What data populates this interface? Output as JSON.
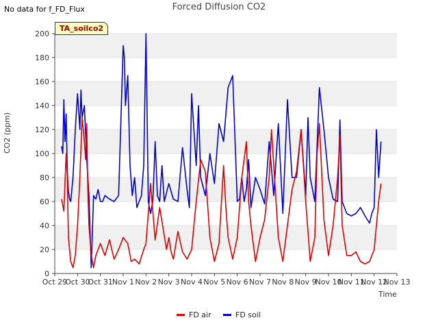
{
  "no_data_msg": "No data for f_FD_Flux",
  "tag_label": "TA_soilco2",
  "chart_data": {
    "type": "line",
    "title": "Forced Diffusion CO2",
    "xlabel": "Time",
    "ylabel": "CO2 (ppm)",
    "ylim": [
      0,
      200
    ],
    "yticks": [
      0,
      20,
      40,
      60,
      80,
      100,
      120,
      140,
      160,
      180,
      200
    ],
    "xticks": [
      "Oct 29",
      "Oct 30",
      "Oct 31",
      "Nov 1",
      "Nov 2",
      "Nov 3",
      "Nov 4",
      "Nov 5",
      "Nov 6",
      "Nov 7",
      "Nov 8",
      "Nov 9",
      "Nov 10",
      "Nov 11",
      "Nov 12",
      "Nov 13"
    ],
    "xlim_days": [
      0,
      15
    ],
    "grid": "horizontal bands",
    "legend_position": "bottom-center",
    "series": [
      {
        "name": "FD air",
        "color": "#dd0000",
        "x": [
          0.3,
          0.4,
          0.5,
          0.55,
          0.6,
          0.7,
          0.8,
          0.9,
          1.0,
          1.1,
          1.2,
          1.3,
          1.35,
          1.4,
          1.45,
          1.5,
          1.6,
          1.7,
          1.8,
          1.9,
          2.0,
          2.2,
          2.4,
          2.6,
          2.8,
          3.0,
          3.2,
          3.35,
          3.5,
          3.7,
          3.9,
          4.0,
          4.2,
          4.4,
          4.6,
          4.9,
          5.0,
          5.1,
          5.2,
          5.4,
          5.6,
          5.8,
          6.0,
          6.2,
          6.4,
          6.6,
          6.8,
          7.0,
          7.2,
          7.4,
          7.5,
          7.6,
          7.8,
          8.0,
          8.2,
          8.4,
          8.5,
          8.6,
          8.8,
          9.0,
          9.2,
          9.4,
          9.5,
          9.6,
          9.8,
          10.0,
          10.2,
          10.4,
          10.6,
          10.8,
          11.0,
          11.2,
          11.4,
          11.5,
          11.6,
          11.8,
          12.0,
          12.2,
          12.4,
          12.5,
          12.6,
          12.8,
          13.0,
          13.2,
          13.4,
          13.6,
          13.8,
          14.0,
          14.2,
          14.3
        ],
        "y": [
          62,
          52,
          100,
          80,
          30,
          10,
          5,
          15,
          40,
          80,
          130,
          110,
          95,
          125,
          70,
          40,
          15,
          5,
          15,
          20,
          25,
          15,
          28,
          12,
          20,
          30,
          25,
          10,
          12,
          8,
          20,
          25,
          75,
          28,
          55,
          20,
          30,
          18,
          12,
          35,
          18,
          12,
          20,
          60,
          95,
          85,
          30,
          10,
          25,
          90,
          55,
          30,
          12,
          30,
          80,
          110,
          60,
          40,
          10,
          30,
          45,
          80,
          120,
          90,
          30,
          10,
          40,
          70,
          85,
          120,
          60,
          10,
          30,
          100,
          125,
          45,
          15,
          40,
          80,
          115,
          40,
          15,
          15,
          18,
          10,
          8,
          10,
          20,
          60,
          75
        ]
      },
      {
        "name": "FD soil",
        "color": "#0000cc",
        "x": [
          0.3,
          0.35,
          0.4,
          0.45,
          0.5,
          0.55,
          0.6,
          0.65,
          0.7,
          0.8,
          0.9,
          1.0,
          1.1,
          1.15,
          1.2,
          1.3,
          1.4,
          1.5,
          1.6,
          1.7,
          1.8,
          1.9,
          2.0,
          2.1,
          2.2,
          2.4,
          2.6,
          2.8,
          3.0,
          3.05,
          3.1,
          3.2,
          3.3,
          3.4,
          3.5,
          3.6,
          3.7,
          3.8,
          3.9,
          4.0,
          4.1,
          4.2,
          4.3,
          4.4,
          4.5,
          4.6,
          4.7,
          4.8,
          5.0,
          5.2,
          5.4,
          5.6,
          5.8,
          5.9,
          6.0,
          6.1,
          6.2,
          6.3,
          6.4,
          6.6,
          6.8,
          7.0,
          7.2,
          7.4,
          7.6,
          7.8,
          8.0,
          8.1,
          8.2,
          8.3,
          8.4,
          8.5,
          8.6,
          8.8,
          9.0,
          9.2,
          9.4,
          9.6,
          9.8,
          10.0,
          10.2,
          10.4,
          10.6,
          10.8,
          11.0,
          11.1,
          11.2,
          11.4,
          11.6,
          11.8,
          12.0,
          12.2,
          12.4,
          12.5,
          12.6,
          12.8,
          13.0,
          13.2,
          13.4,
          13.6,
          13.8,
          13.9,
          14.0,
          14.1,
          14.2,
          14.3
        ],
        "y": [
          106,
          100,
          145,
          110,
          133,
          85,
          68,
          62,
          60,
          80,
          120,
          150,
          120,
          153,
          130,
          140,
          95,
          65,
          5,
          65,
          62,
          70,
          60,
          60,
          65,
          62,
          60,
          65,
          190,
          180,
          140,
          165,
          90,
          65,
          80,
          55,
          60,
          65,
          90,
          200,
          60,
          50,
          60,
          110,
          65,
          60,
          90,
          60,
          75,
          62,
          60,
          105,
          70,
          55,
          150,
          120,
          90,
          140,
          80,
          65,
          100,
          75,
          125,
          110,
          155,
          165,
          60,
          62,
          80,
          60,
          70,
          95,
          55,
          80,
          70,
          58,
          110,
          65,
          125,
          50,
          145,
          80,
          80,
          120,
          65,
          130,
          80,
          60,
          155,
          120,
          80,
          62,
          60,
          128,
          60,
          50,
          48,
          50,
          55,
          48,
          42,
          50,
          55,
          120,
          80,
          110
        ]
      }
    ]
  }
}
